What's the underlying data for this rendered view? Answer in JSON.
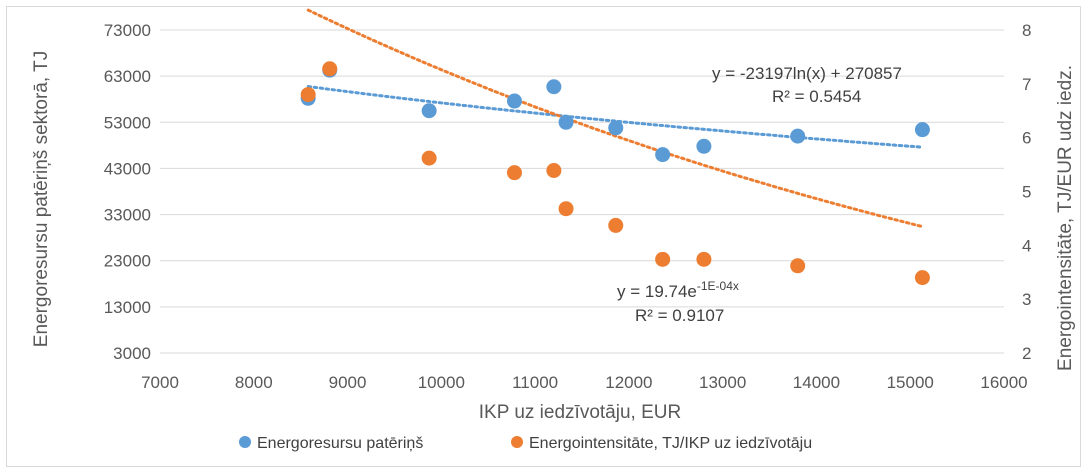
{
  "chart_data": {
    "type": "scatter",
    "xlabel": "IKP uz iedzīvotāju, EUR",
    "ylabel": "Energoresursu patēriņš sektorā, TJ",
    "y2label": "Energointensitāte, TJ/EUR udz iedz.",
    "xlim": [
      7000,
      16000
    ],
    "ylim": [
      3000,
      73000
    ],
    "y2lim": [
      2,
      8
    ],
    "x_ticks": [
      7000,
      8000,
      9000,
      10000,
      11000,
      12000,
      13000,
      14000,
      15000,
      16000
    ],
    "y_ticks": [
      3000,
      13000,
      23000,
      33000,
      43000,
      53000,
      63000,
      73000
    ],
    "y2_ticks": [
      2,
      3,
      4,
      5,
      6,
      7,
      8
    ],
    "grid": "horizontal",
    "legend_position": "bottom",
    "series": [
      {
        "name": "Energoresursu patēriņš",
        "axis": "left",
        "color": "#5b9bd5",
        "x": [
          8580,
          8810,
          9870,
          10780,
          11200,
          11330,
          11860,
          12360,
          12800,
          13800,
          15130
        ],
        "y": [
          58200,
          64300,
          55500,
          57600,
          60700,
          53000,
          51800,
          46000,
          47800,
          50000,
          51400
        ],
        "trendline": {
          "type": "log",
          "a": -23197,
          "b": 270857,
          "x_range": [
            8580,
            15130
          ]
        }
      },
      {
        "name": "Energointensitāte, TJ/IKP uz iedzīvotāju",
        "axis": "right",
        "color": "#ed7d31",
        "x": [
          8580,
          8810,
          9870,
          10780,
          11200,
          11330,
          11860,
          12360,
          12800,
          13800,
          15130
        ],
        "y": [
          6.8,
          7.28,
          5.62,
          5.35,
          5.39,
          4.68,
          4.37,
          3.74,
          3.74,
          3.62,
          3.4
        ],
        "trendline": {
          "type": "exp",
          "a": 19.74,
          "k": -0.0001,
          "x_range": [
            8580,
            15130
          ]
        }
      }
    ],
    "annotations": [
      {
        "id": "blue_eq",
        "line1": "y = -23197ln(x) + 270857",
        "line2": "R² = 0.5454"
      },
      {
        "id": "orange_eq",
        "line1_base": "y = 19.74e",
        "line1_exp": "-1E-04x",
        "line2": "R² = 0.9107"
      }
    ]
  }
}
